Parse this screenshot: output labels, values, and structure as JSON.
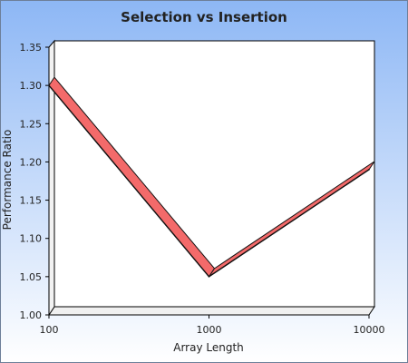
{
  "chart_data": {
    "type": "line",
    "title": "Selection vs Insertion",
    "xlabel": "Array Length",
    "ylabel": "Performance Ratio",
    "x": [
      100,
      1000,
      10000
    ],
    "x_scale": "log",
    "x_ticks": [
      "100",
      "1000",
      "10000"
    ],
    "ylim": [
      1.0,
      1.35
    ],
    "y_ticks": [
      "1.00",
      "1.05",
      "1.10",
      "1.15",
      "1.20",
      "1.25",
      "1.30",
      "1.35"
    ],
    "series": [
      {
        "values": [
          1.3,
          1.05,
          1.19
        ]
      }
    ],
    "grid": false,
    "legend": "none",
    "style": "3d-ribbon"
  },
  "colors": {
    "background_top": "#8db7f5",
    "background_bottom": "#ffffff",
    "series_fill": "#f36a6a",
    "series_edge": "#111111"
  }
}
